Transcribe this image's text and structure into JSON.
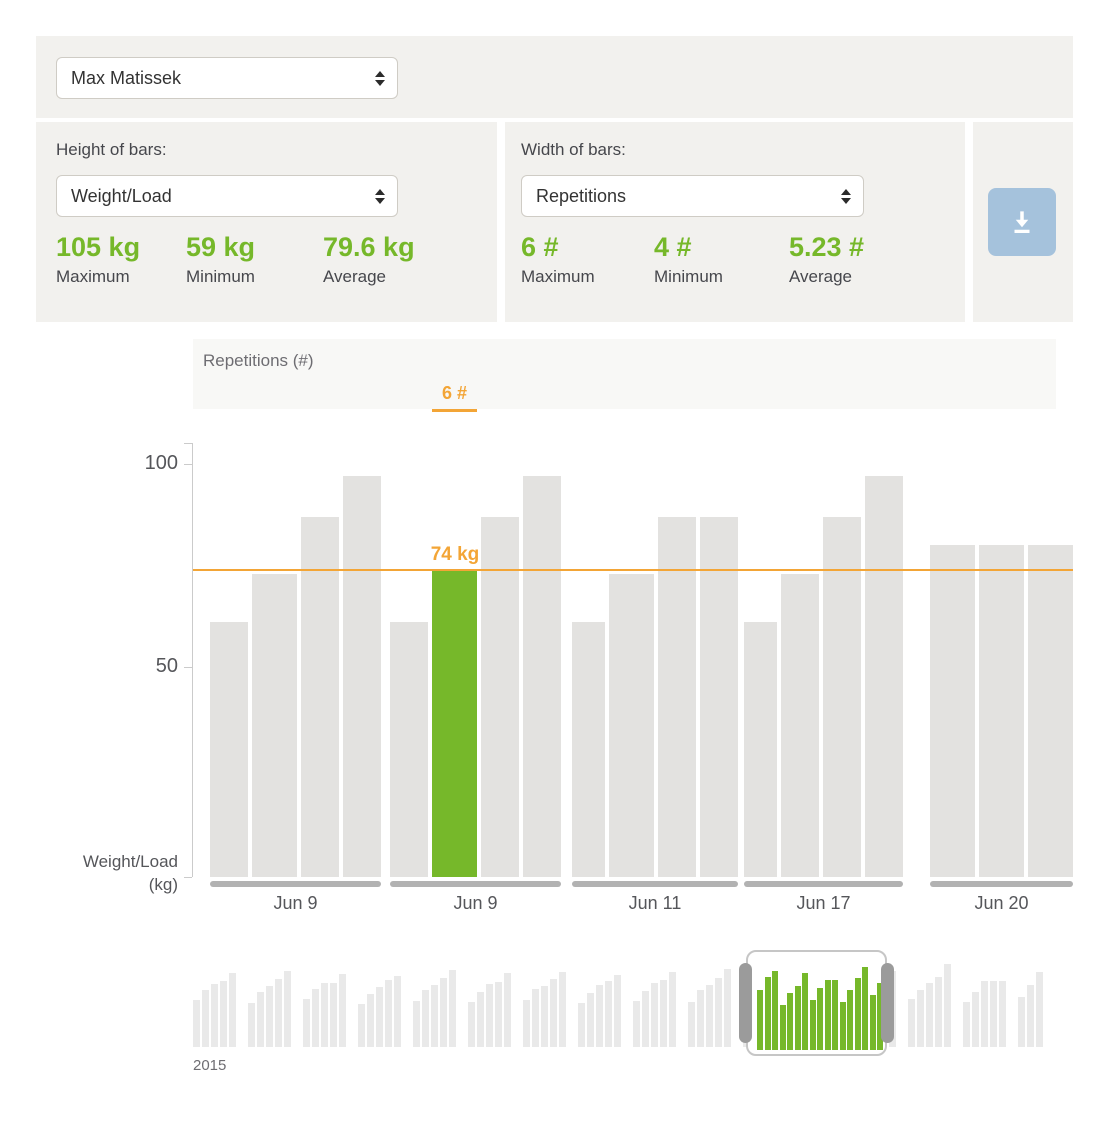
{
  "player_select": {
    "value": "Max Matissek"
  },
  "height_panel": {
    "label": "Height of bars:",
    "select_value": "Weight/Load",
    "stats": [
      {
        "value": "105 kg",
        "label": "Maximum"
      },
      {
        "value": "59 kg",
        "label": "Minimum"
      },
      {
        "value": "79.6 kg",
        "label": "Average"
      }
    ]
  },
  "width_panel": {
    "label": "Width of bars:",
    "select_value": "Repetitions",
    "stats": [
      {
        "value": "6 #",
        "label": "Maximum"
      },
      {
        "value": "4 #",
        "label": "Minimum"
      },
      {
        "value": "5.23 #",
        "label": "Average"
      }
    ]
  },
  "download": {
    "icon": "download-icon"
  },
  "chart_header": {
    "title": "Repetitions (#)",
    "selected_value": "6 #"
  },
  "chart_data": {
    "type": "bar",
    "title": "Repetitions (#)",
    "ylabel": "Weight/Load (kg)",
    "ylabel_lines": [
      "Weight/Load",
      "(kg)"
    ],
    "yticks": [
      100,
      50
    ],
    "ylim": [
      0,
      105
    ],
    "threshold": {
      "value": 74,
      "label": "74 kg"
    },
    "groups": [
      {
        "date": "Jun 9",
        "bars": [
          {
            "kg": 61,
            "reps": 5
          },
          {
            "kg": 73,
            "reps": 6
          },
          {
            "kg": 87,
            "reps": 5
          },
          {
            "kg": 97,
            "reps": 5
          }
        ]
      },
      {
        "date": "Jun 9",
        "bars": [
          {
            "kg": 61,
            "reps": 5
          },
          {
            "kg": 74,
            "reps": 6,
            "selected": true
          },
          {
            "kg": 87,
            "reps": 5
          },
          {
            "kg": 97,
            "reps": 5
          }
        ]
      },
      {
        "date": "Jun 11",
        "bars": [
          {
            "kg": 61,
            "reps": 4
          },
          {
            "kg": 73,
            "reps": 6
          },
          {
            "kg": 87,
            "reps": 5
          },
          {
            "kg": 87,
            "reps": 5
          }
        ]
      },
      {
        "date": "Jun 17",
        "bars": [
          {
            "kg": 61,
            "reps": 4
          },
          {
            "kg": 73,
            "reps": 5
          },
          {
            "kg": 87,
            "reps": 5
          },
          {
            "kg": 97,
            "reps": 5
          }
        ]
      },
      {
        "date": "Jun 20",
        "bars": [
          {
            "kg": 80,
            "reps": 6
          },
          {
            "kg": 80,
            "reps": 6
          },
          {
            "kg": 80,
            "reps": 6
          }
        ]
      }
    ]
  },
  "mini_chart": {
    "year_label": "2015",
    "background_clusters": [
      [
        47,
        57,
        63,
        66,
        74
      ],
      [
        44,
        55,
        61,
        68,
        76
      ],
      [
        48,
        58,
        64,
        64,
        73
      ],
      [
        43,
        53,
        60,
        67,
        71
      ],
      [
        46,
        57,
        62,
        69,
        77
      ],
      [
        45,
        55,
        63,
        65,
        74
      ],
      [
        47,
        58,
        61,
        68,
        75
      ],
      [
        44,
        54,
        62,
        66,
        72
      ],
      [
        46,
        56,
        64,
        67,
        75
      ],
      [
        45,
        57,
        62,
        69,
        78
      ],
      [
        47,
        55,
        63,
        66,
        73
      ],
      [
        44,
        56,
        61,
        68,
        74
      ],
      [
        46,
        58,
        63,
        65,
        76
      ],
      [
        48,
        57,
        64,
        70,
        83
      ],
      [
        45,
        55,
        66,
        66,
        66
      ],
      [
        50,
        62,
        75
      ]
    ],
    "selected_bars": [
      60,
      73,
      79,
      45,
      57,
      64,
      77,
      50,
      62,
      70,
      70,
      48,
      60,
      72,
      83,
      55,
      67
    ]
  }
}
